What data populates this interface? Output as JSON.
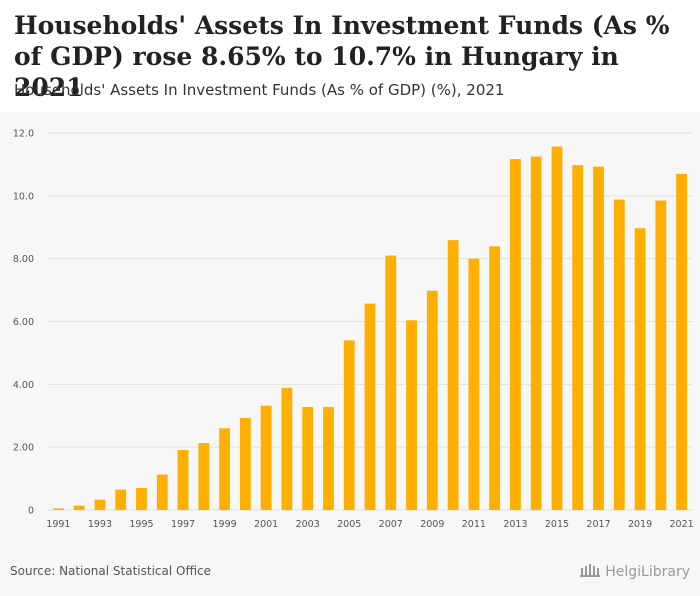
{
  "header": {
    "title": "Households' Assets In Investment Funds (As % of GDP) rose 8.65% to 10.7% in Hungary in 2021",
    "subtitle": "Households' Assets In Investment Funds (As % of GDP) (%), 2021"
  },
  "footer": {
    "source": "Source: National Statistical Office",
    "logo_text": "HelgiLibrary"
  },
  "colors": {
    "bar": "#ffaf00",
    "grid": "#e2e2e2",
    "axis_text": "#555555"
  },
  "chart_data": {
    "type": "bar",
    "title": "Households' Assets In Investment Funds (As % of GDP) rose 8.65% to 10.7% in Hungary in 2021",
    "subtitle": "Households' Assets In Investment Funds (As % of GDP) (%), 2021",
    "xlabel": "",
    "ylabel": "",
    "ylim": [
      0,
      12
    ],
    "yticks": [
      0,
      2,
      4,
      6,
      8,
      10,
      12
    ],
    "ytick_labels": [
      "0",
      "2.00",
      "4.00",
      "6.00",
      "8.00",
      "10.0",
      "12.0"
    ],
    "grid": true,
    "categories": [
      "1991",
      "1992",
      "1993",
      "1994",
      "1995",
      "1996",
      "1997",
      "1998",
      "1999",
      "2000",
      "2001",
      "2002",
      "2003",
      "2004",
      "2005",
      "2006",
      "2007",
      "2008",
      "2009",
      "2010",
      "2011",
      "2012",
      "2013",
      "2014",
      "2015",
      "2016",
      "2017",
      "2018",
      "2019",
      "2020",
      "2021"
    ],
    "xtick_labels": [
      "1991",
      "1993",
      "1995",
      "1997",
      "1999",
      "2001",
      "2003",
      "2005",
      "2007",
      "2009",
      "2011",
      "2013",
      "2015",
      "2017",
      "2019",
      "2021"
    ],
    "values": [
      0.05,
      0.14,
      0.33,
      0.65,
      0.7,
      1.13,
      1.91,
      2.13,
      2.6,
      2.93,
      3.32,
      3.89,
      3.28,
      3.28,
      5.4,
      6.57,
      8.1,
      6.04,
      6.98,
      8.59,
      8.0,
      8.39,
      11.17,
      11.25,
      11.57,
      10.98,
      10.93,
      9.88,
      8.97,
      9.85,
      10.7
    ]
  }
}
